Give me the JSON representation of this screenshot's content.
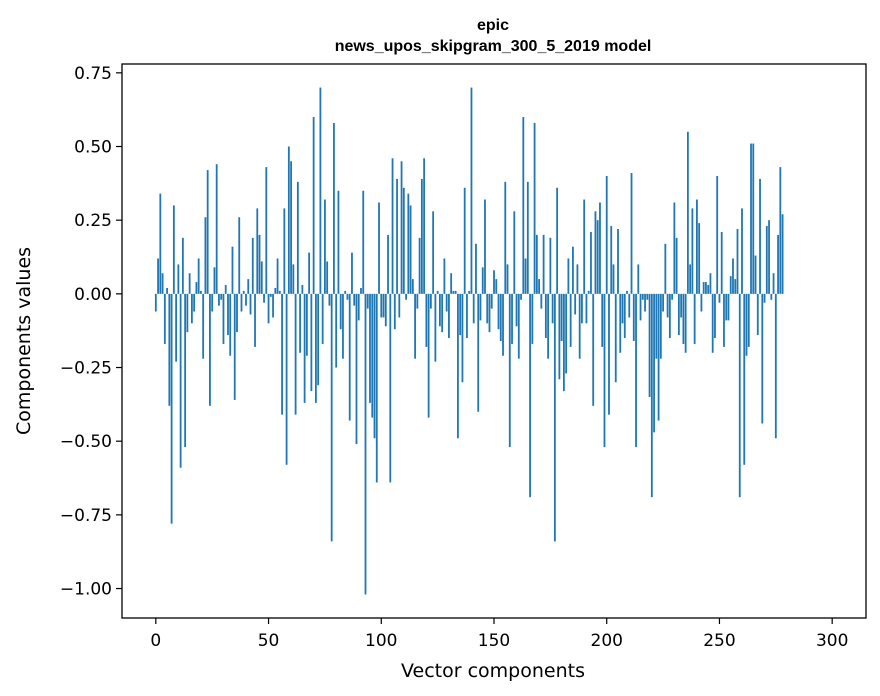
{
  "chart_data": {
    "type": "bar",
    "title_line1": "epic",
    "title_line2": "news_upos_skipgram_300_5_2019 model",
    "xlabel": "Vector components",
    "ylabel": "Components values",
    "xlim": [
      -15,
      315
    ],
    "ylim": [
      -1.1,
      0.78
    ],
    "xticks": [
      0,
      50,
      100,
      150,
      200,
      250,
      300
    ],
    "xtick_labels": [
      "0",
      "50",
      "100",
      "150",
      "200",
      "250",
      "300"
    ],
    "yticks": [
      -1.0,
      -0.75,
      -0.5,
      -0.25,
      0.0,
      0.25,
      0.5,
      0.75
    ],
    "ytick_labels": [
      "−1.00",
      "−0.75",
      "−0.50",
      "−0.25",
      "0.00",
      "0.25",
      "0.50",
      "0.75"
    ],
    "bar_color": "#1f77b4",
    "grid": false,
    "values": [
      -0.06,
      0.12,
      0.34,
      0.07,
      -0.17,
      0.02,
      -0.38,
      -0.78,
      0.3,
      -0.23,
      0.1,
      -0.59,
      0.19,
      -0.52,
      -0.13,
      0.07,
      -0.1,
      -0.06,
      0.04,
      0.12,
      0.01,
      -0.22,
      0.26,
      0.42,
      -0.38,
      -0.06,
      0.09,
      0.44,
      -0.04,
      -0.02,
      -0.17,
      0.03,
      -0.14,
      -0.21,
      0.16,
      -0.36,
      -0.13,
      0.26,
      -0.06,
      0.01,
      -0.04,
      0.05,
      -0.07,
      0.19,
      -0.18,
      0.29,
      0.2,
      0.11,
      -0.03,
      0.43,
      -0.1,
      -0.01,
      -0.08,
      0.02,
      0.12,
      0.01,
      -0.41,
      0.29,
      -0.58,
      0.5,
      0.45,
      0.1,
      -0.41,
      0.38,
      -0.2,
      0.03,
      -0.37,
      -0.21,
      0.14,
      -0.33,
      0.6,
      -0.37,
      -0.31,
      0.7,
      -0.17,
      0.32,
      0.11,
      -0.04,
      -0.84,
      0.58,
      -0.25,
      0.35,
      -0.12,
      -0.22,
      0.01,
      -0.02,
      -0.43,
      0.14,
      -0.04,
      -0.51,
      -0.09,
      0.02,
      0.35,
      -1.02,
      -0.05,
      -0.37,
      -0.42,
      -0.49,
      -0.64,
      0.31,
      -0.08,
      -0.08,
      -0.11,
      0.2,
      -0.64,
      0.46,
      -0.12,
      0.39,
      -0.08,
      0.45,
      0.36,
      -0.02,
      0.34,
      0.3,
      0.05,
      -0.22,
      -0.05,
      0.19,
      0.39,
      0.46,
      -0.18,
      -0.42,
      -0.05,
      0.28,
      -0.23,
      0.01,
      -0.11,
      -0.13,
      0.12,
      -0.06,
      -0.15,
      0.07,
      0.01,
      0.01,
      -0.49,
      -0.14,
      -0.3,
      0.36,
      -0.15,
      0.01,
      0.7,
      -0.1,
      0.17,
      -0.4,
      -0.09,
      0.09,
      0.32,
      -0.1,
      -0.13,
      -0.05,
      0.08,
      0.05,
      -0.12,
      -0.16,
      -0.21,
      0.38,
      0.1,
      -0.52,
      -0.17,
      0.28,
      -0.11,
      -0.22,
      -0.02,
      0.6,
      0.12,
      0.38,
      -0.69,
      -0.17,
      0.58,
      0.2,
      0.05,
      -0.05,
      0.2,
      -0.15,
      -0.22,
      0.19,
      -0.1,
      -0.84,
      0.36,
      -0.29,
      -0.16,
      -0.33,
      -0.27,
      0.12,
      -0.18,
      0.16,
      -0.07,
      0.1,
      -0.22,
      -0.1,
      0.32,
      -0.1,
      0.01,
      0.21,
      -0.38,
      0.28,
      0.25,
      0.31,
      -0.18,
      -0.52,
      0.4,
      -0.41,
      0.23,
      0.1,
      -0.3,
      0.22,
      -0.2,
      -0.1,
      -0.15,
      0.01,
      -0.08,
      0.41,
      -0.16,
      -0.52,
      0.1,
      -0.09,
      -0.02,
      -0.06,
      -0.02,
      -0.35,
      -0.69,
      -0.47,
      -0.22,
      -0.43,
      -0.22,
      -0.06,
      0.17,
      -0.08,
      -0.15,
      -0.02,
      0.31,
      0.19,
      -0.14,
      -0.08,
      -0.17,
      -0.2,
      0.55,
      0.1,
      0.29,
      -0.17,
      0.32,
      0.24,
      -0.06,
      0.04,
      0.04,
      0.03,
      0.07,
      -0.2,
      -0.15,
      0.4,
      -0.03,
      0.21,
      -0.18,
      -0.09,
      -0.09,
      0.06,
      0.12,
      0.05,
      0.22,
      -0.69,
      0.29,
      -0.58,
      -0.21,
      -0.18,
      0.51,
      0.51,
      0.13,
      -0.14,
      0.39,
      -0.44,
      -0.03,
      0.23,
      0.25,
      -0.02,
      0.07,
      -0.49,
      0.2,
      0.43,
      0.27
    ]
  }
}
